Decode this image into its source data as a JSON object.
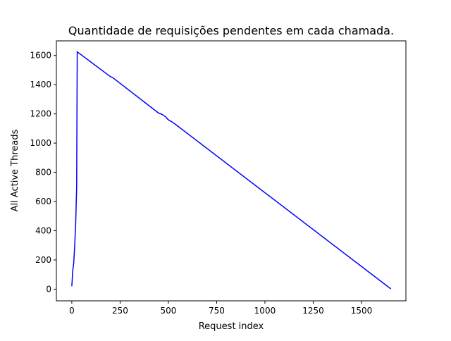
{
  "chart_data": {
    "type": "line",
    "title": "Quantidade de requisições pendentes em cada chamada.",
    "xlabel": "Request index",
    "ylabel": "All Active Threads",
    "xlim": [
      -80,
      1730
    ],
    "ylim": [
      -80,
      1700
    ],
    "xticks": [
      0,
      250,
      500,
      750,
      1000,
      1250,
      1500
    ],
    "yticks": [
      0,
      200,
      400,
      600,
      800,
      1000,
      1200,
      1400,
      1600
    ],
    "grid": false,
    "series": [
      {
        "color": "#0000ff",
        "points": [
          [
            0,
            20
          ],
          [
            5,
            130
          ],
          [
            10,
            180
          ],
          [
            15,
            300
          ],
          [
            20,
            450
          ],
          [
            25,
            700
          ],
          [
            28,
            1625
          ],
          [
            200,
            1455
          ],
          [
            210,
            1450
          ],
          [
            450,
            1205
          ],
          [
            470,
            1195
          ],
          [
            490,
            1175
          ],
          [
            495,
            1165
          ],
          [
            505,
            1155
          ],
          [
            515,
            1148
          ],
          [
            530,
            1135
          ],
          [
            1652,
            2
          ]
        ]
      }
    ]
  }
}
